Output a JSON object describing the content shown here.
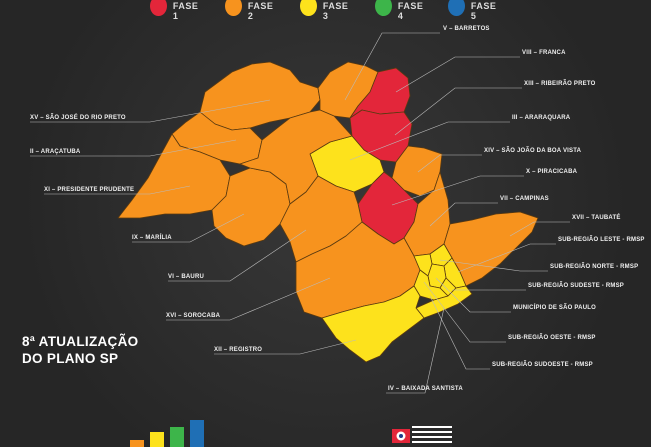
{
  "legend": [
    {
      "label": "FASE 1",
      "color": "#e3263a"
    },
    {
      "label": "FASE 2",
      "color": "#f7931e"
    },
    {
      "label": "FASE 3",
      "color": "#fde21c"
    },
    {
      "label": "FASE 4",
      "color": "#3db54a"
    },
    {
      "label": "FASE 5",
      "color": "#1f6fb5"
    }
  ],
  "title": {
    "line1": "8ª ATUALIZAÇÃO",
    "line2": "DO PLANO SP"
  },
  "regions": {
    "barretos": "V – BARRETOS",
    "franca": "VIII – FRANCA",
    "ribeirao_preto": "XIII – RIBEIRÃO PRETO",
    "araraquara": "III – ARARAQUARA",
    "sao_joao": "XIV – SÃO JOÃO DA BOA VISTA",
    "piracicaba": "X – PIRACICABA",
    "campinas": "VII – CAMPINAS",
    "taubate": "XVII – TAUBATÉ",
    "sub_leste": "SUB-REGIÃO LESTE - RMSP",
    "sub_norte": "SUB-REGIÃO NORTE - RMSP",
    "sub_sudeste": "SUB-REGIÃO SUDESTE - RMSP",
    "municipio_sp": "MUNICÍPIO DE SÃO PAULO",
    "sub_oeste": "SUB-REGIÃO OESTE - RMSP",
    "sub_sudoeste": "SUB-REGIÃO SUDOESTE - RMSP",
    "baixada": "IV – BAIXADA SANTISTA",
    "sao_jose_rio_preto": "XV – SÃO JOSÉ DO RIO PRETO",
    "aracatuba": "II – ARAÇATUBA",
    "presidente_prudente": "XI – PRESIDENTE PRUDENTE",
    "marilia": "IX – MARÍLIA",
    "bauru": "VI – BAURU",
    "sorocaba": "XVI – SOROCABA",
    "registro": "XII – REGISTRO"
  },
  "colors": {
    "phase1": "#e3263a",
    "phase2": "#f7931e",
    "phase3": "#fde21c",
    "border": "#5a3a10",
    "leader": "#bbbbbb"
  }
}
